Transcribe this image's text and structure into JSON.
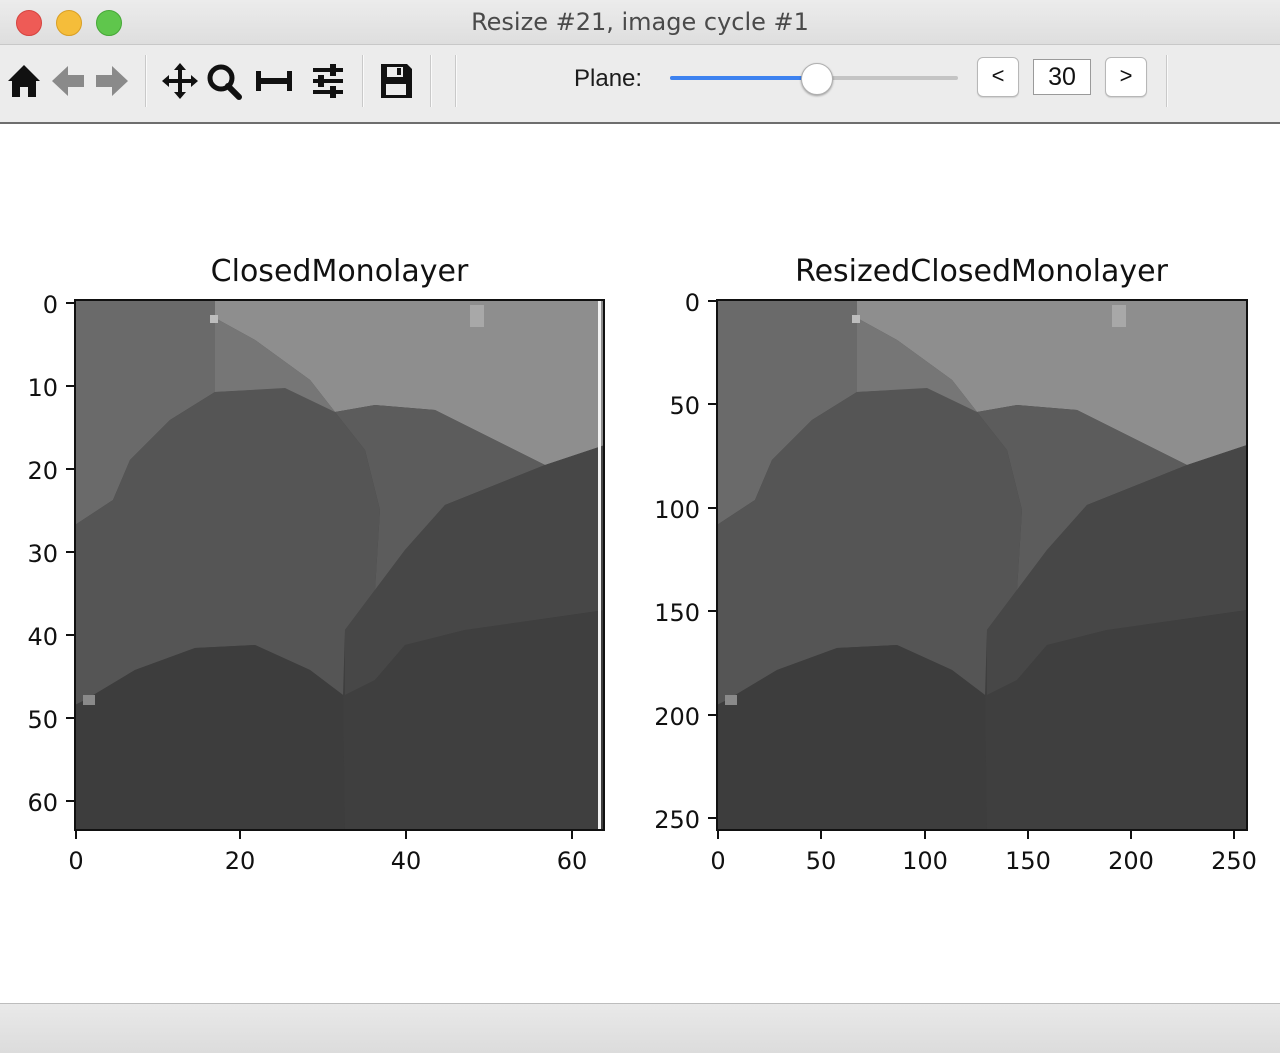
{
  "window": {
    "title": "Resize #21, image cycle #1"
  },
  "toolbar": {
    "icons": [
      "home-icon",
      "back-arrow-icon",
      "forward-arrow-icon",
      "pan-icon",
      "zoom-icon",
      "subplots-adjust-icon",
      "configure-icon",
      "save-icon"
    ],
    "plane_label": "Plane:",
    "plane_value": "30",
    "prev_label": "<",
    "next_label": ">",
    "slider_fraction": 0.51
  },
  "colors": {
    "slider_accent": "#3d82f0",
    "close": "#ee5b56",
    "minimize": "#f5bd3a",
    "maximize": "#5fc64c"
  },
  "figure": {
    "panels": [
      {
        "title": "ClosedMonolayer",
        "xticks": [
          "0",
          "20",
          "40",
          "60"
        ],
        "yticks": [
          "0",
          "10",
          "20",
          "30",
          "40",
          "50",
          "60"
        ]
      },
      {
        "title": "ResizedClosedMonolayer",
        "xticks": [
          "0",
          "50",
          "100",
          "150",
          "200",
          "250"
        ],
        "yticks": [
          "0",
          "50",
          "100",
          "150",
          "200",
          "250"
        ]
      }
    ]
  }
}
